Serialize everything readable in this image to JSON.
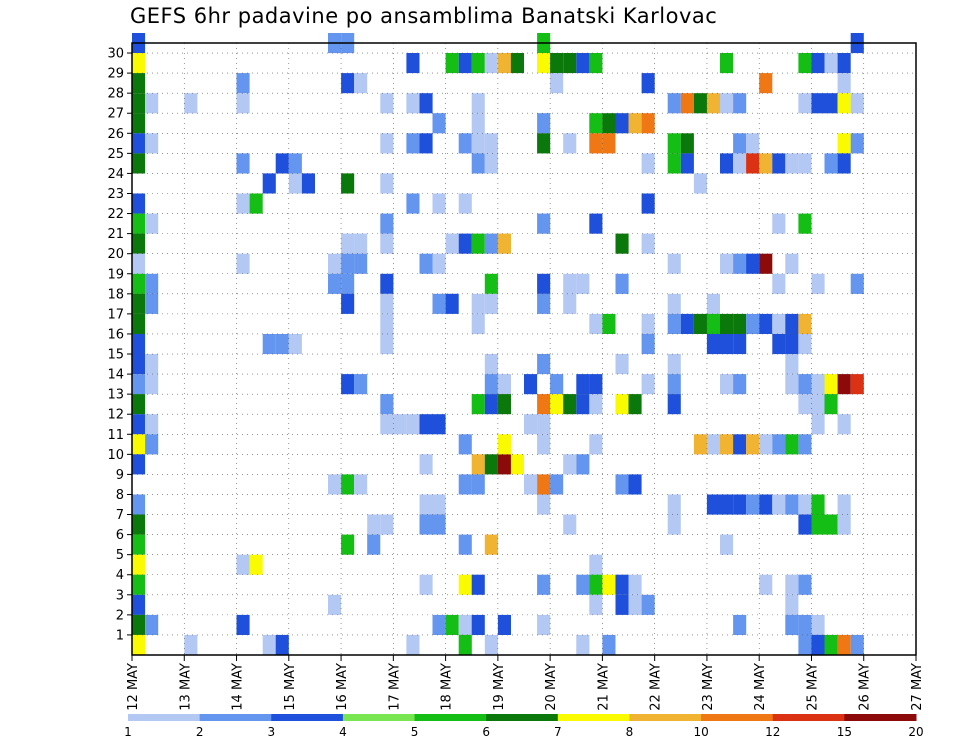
{
  "chart_data": {
    "type": "heatmap",
    "title": "GEFS 6hr padavine po ansamblima Banatski Karlovac",
    "xlabel": "",
    "ylabel": "",
    "x_ticks": [
      "12 MAY",
      "13 MAY",
      "14 MAY",
      "15 MAY",
      "16 MAY",
      "17 MAY",
      "18 MAY",
      "19 MAY",
      "20 MAY",
      "21 MAY",
      "22 MAY",
      "23 MAY",
      "24 MAY",
      "25 MAY",
      "26 MAY",
      "27 MAY"
    ],
    "x_range_days": [
      12,
      27
    ],
    "y_ticks": [
      1,
      2,
      3,
      4,
      5,
      6,
      7,
      8,
      9,
      10,
      11,
      12,
      13,
      14,
      15,
      16,
      17,
      18,
      19,
      20,
      21,
      22,
      23,
      24,
      25,
      26,
      27,
      28,
      29,
      30
    ],
    "ylim": [
      0,
      30
    ],
    "grid": true,
    "colorbar": {
      "labels": [
        "1",
        "2",
        "3",
        "4",
        "5",
        "6",
        "7",
        "8",
        "10",
        "12",
        "15",
        "20"
      ],
      "colors": [
        "#b4c8f4",
        "#6496f0",
        "#1e50dc",
        "#78e650",
        "#14be14",
        "#0a780a",
        "#fafa00",
        "#f0b432",
        "#f07814",
        "#dc3214",
        "#8c0a0a"
      ]
    },
    "cells_note": "each cell: [member, time_slot (0.25 day steps from 12 May 00 UTC), precipitation mm]",
    "cells": [
      [
        30,
        1,
        3
      ],
      [
        29,
        1,
        7
      ],
      [
        28,
        1,
        6
      ],
      [
        27,
        1,
        6
      ],
      [
        26,
        1,
        6
      ],
      [
        25,
        1,
        3
      ],
      [
        24,
        1,
        6
      ],
      [
        22,
        1,
        3
      ],
      [
        21,
        1,
        5
      ],
      [
        20,
        1,
        6
      ],
      [
        19,
        1,
        1
      ],
      [
        18,
        1,
        5
      ],
      [
        17,
        1,
        6
      ],
      [
        16,
        1,
        6
      ],
      [
        15,
        1,
        3
      ],
      [
        14,
        1,
        3
      ],
      [
        13,
        1,
        2
      ],
      [
        12,
        1,
        6
      ],
      [
        11,
        1,
        3
      ],
      [
        10,
        1,
        7
      ],
      [
        9,
        1,
        3
      ],
      [
        7,
        1,
        2
      ],
      [
        6,
        1,
        6
      ],
      [
        5,
        1,
        5
      ],
      [
        4,
        1,
        7
      ],
      [
        3,
        1,
        5
      ],
      [
        2,
        1,
        3
      ],
      [
        1,
        1,
        6
      ],
      [
        0,
        1,
        7
      ],
      [
        27,
        2,
        1
      ],
      [
        25,
        2,
        1
      ],
      [
        21,
        2,
        1
      ],
      [
        18,
        2,
        2
      ],
      [
        17,
        2,
        2
      ],
      [
        14,
        2,
        1
      ],
      [
        13,
        2,
        1
      ],
      [
        11,
        2,
        1
      ],
      [
        10,
        2,
        2
      ],
      [
        1,
        2,
        2
      ],
      [
        27,
        5,
        1
      ],
      [
        0,
        5,
        1
      ],
      [
        28,
        9,
        2
      ],
      [
        27,
        9,
        1
      ],
      [
        24,
        9,
        2
      ],
      [
        22,
        9,
        1
      ],
      [
        19,
        9,
        1
      ],
      [
        4,
        9,
        1
      ],
      [
        1,
        9,
        3
      ],
      [
        22,
        10,
        5
      ],
      [
        4,
        10,
        7
      ],
      [
        23,
        11,
        3
      ],
      [
        15,
        11,
        2
      ],
      [
        0,
        11,
        1
      ],
      [
        24,
        12,
        3
      ],
      [
        15,
        12,
        2
      ],
      [
        0,
        12,
        3
      ],
      [
        24,
        13,
        2
      ],
      [
        23,
        13,
        1
      ],
      [
        15,
        13,
        1
      ],
      [
        23,
        14,
        3
      ],
      [
        30,
        16,
        2
      ],
      [
        19,
        16,
        1
      ],
      [
        18,
        16,
        2
      ],
      [
        2,
        16,
        1
      ],
      [
        8,
        16,
        1
      ],
      [
        30,
        17,
        2
      ],
      [
        28,
        17,
        3
      ],
      [
        23,
        17,
        6
      ],
      [
        20,
        17,
        1
      ],
      [
        19,
        17,
        2
      ],
      [
        18,
        17,
        2
      ],
      [
        17,
        17,
        3
      ],
      [
        13,
        17,
        3
      ],
      [
        8,
        17,
        5
      ],
      [
        5,
        17,
        5
      ],
      [
        28,
        18,
        1
      ],
      [
        20,
        18,
        1
      ],
      [
        19,
        18,
        2
      ],
      [
        13,
        18,
        2
      ],
      [
        8,
        18,
        1
      ],
      [
        6,
        19,
        1
      ],
      [
        5,
        19,
        2
      ],
      [
        27,
        20,
        1
      ],
      [
        25,
        20,
        1
      ],
      [
        23,
        20,
        1
      ],
      [
        21,
        20,
        2
      ],
      [
        20,
        20,
        1
      ],
      [
        18,
        20,
        3
      ],
      [
        17,
        20,
        1
      ],
      [
        16,
        20,
        1
      ],
      [
        15,
        20,
        1
      ],
      [
        12,
        20,
        2
      ],
      [
        11,
        20,
        1
      ],
      [
        6,
        20,
        1
      ],
      [
        11,
        21,
        1
      ],
      [
        11,
        22,
        1
      ],
      [
        27,
        22,
        1
      ],
      [
        25,
        22,
        2
      ],
      [
        22,
        22,
        2
      ],
      [
        11,
        23,
        3
      ],
      [
        0,
        22,
        1
      ],
      [
        29,
        22,
        3
      ],
      [
        27,
        23,
        3
      ],
      [
        25,
        23,
        3
      ],
      [
        19,
        23,
        2
      ],
      [
        11,
        24,
        3
      ],
      [
        9,
        23,
        1
      ],
      [
        7,
        23,
        1
      ],
      [
        6,
        23,
        2
      ],
      [
        3,
        23,
        1
      ],
      [
        26,
        24,
        2
      ],
      [
        22,
        24,
        1
      ],
      [
        19,
        24,
        1
      ],
      [
        17,
        24,
        2
      ],
      [
        7,
        24,
        1
      ],
      [
        6,
        24,
        2
      ],
      [
        1,
        24,
        2
      ],
      [
        29,
        25,
        5
      ],
      [
        20,
        25,
        1
      ],
      [
        17,
        25,
        3
      ],
      [
        1,
        25,
        5
      ],
      [
        29,
        26,
        3
      ],
      [
        22,
        26,
        1
      ],
      [
        25,
        26,
        2
      ],
      [
        20,
        26,
        3
      ],
      [
        10,
        26,
        2
      ],
      [
        8,
        26,
        2
      ],
      [
        5,
        26,
        2
      ],
      [
        3,
        26,
        7
      ],
      [
        1,
        26,
        1
      ],
      [
        0,
        26,
        5
      ],
      [
        29,
        27,
        5
      ],
      [
        27,
        27,
        1
      ],
      [
        26,
        27,
        1
      ],
      [
        25,
        27,
        1
      ],
      [
        24,
        27,
        2
      ],
      [
        20,
        27,
        5
      ],
      [
        17,
        27,
        1
      ],
      [
        16,
        27,
        1
      ],
      [
        12,
        27,
        5
      ],
      [
        9,
        27,
        9
      ],
      [
        8,
        27,
        2
      ],
      [
        3,
        27,
        3
      ],
      [
        1,
        27,
        3
      ],
      [
        29,
        28,
        1
      ],
      [
        25,
        28,
        1
      ],
      [
        24,
        28,
        1
      ],
      [
        20,
        28,
        2
      ],
      [
        18,
        28,
        5
      ],
      [
        17,
        28,
        1
      ],
      [
        14,
        28,
        1
      ],
      [
        13,
        28,
        2
      ],
      [
        12,
        28,
        3
      ],
      [
        9,
        28,
        6
      ],
      [
        5,
        28,
        8
      ],
      [
        0,
        28,
        1
      ],
      [
        29,
        29,
        9
      ],
      [
        20,
        29,
        8
      ],
      [
        13,
        29,
        1
      ],
      [
        12,
        29,
        6
      ],
      [
        9,
        29,
        15
      ],
      [
        10,
        29,
        7
      ],
      [
        1,
        29,
        3
      ],
      [
        29,
        30,
        6
      ],
      [
        9,
        30,
        7
      ],
      [
        13,
        31,
        3
      ],
      [
        11,
        31,
        1
      ],
      [
        8,
        31,
        1
      ],
      [
        30,
        32,
        5
      ],
      [
        29,
        32,
        7
      ],
      [
        26,
        32,
        2
      ],
      [
        25,
        32,
        6
      ],
      [
        21,
        32,
        2
      ],
      [
        18,
        32,
        3
      ],
      [
        17,
        32,
        2
      ],
      [
        14,
        32,
        2
      ],
      [
        12,
        32,
        10
      ],
      [
        11,
        32,
        1
      ],
      [
        10,
        32,
        1
      ],
      [
        8,
        32,
        10
      ],
      [
        7,
        32,
        1
      ],
      [
        3,
        32,
        2
      ],
      [
        1,
        32,
        1
      ],
      [
        29,
        33,
        6
      ],
      [
        28,
        33,
        1
      ],
      [
        13,
        33,
        2
      ],
      [
        12,
        33,
        7
      ],
      [
        8,
        33,
        2
      ],
      [
        29,
        34,
        6
      ],
      [
        25,
        34,
        1
      ],
      [
        18,
        34,
        1
      ],
      [
        17,
        34,
        1
      ],
      [
        12,
        34,
        6
      ],
      [
        9,
        34,
        1
      ],
      [
        6,
        34,
        1
      ],
      [
        29,
        35,
        3
      ],
      [
        18,
        35,
        1
      ],
      [
        13,
        35,
        3
      ],
      [
        12,
        35,
        3
      ],
      [
        9,
        35,
        2
      ],
      [
        3,
        35,
        2
      ],
      [
        0,
        35,
        1
      ],
      [
        29,
        36,
        5
      ],
      [
        26,
        36,
        5
      ],
      [
        25,
        36,
        10
      ],
      [
        21,
        36,
        3
      ],
      [
        16,
        36,
        1
      ],
      [
        13,
        36,
        3
      ],
      [
        12,
        36,
        1
      ],
      [
        10,
        36,
        1
      ],
      [
        4,
        36,
        1
      ],
      [
        3,
        36,
        5
      ],
      [
        2,
        36,
        1
      ],
      [
        26,
        37,
        6
      ],
      [
        25,
        37,
        10
      ],
      [
        16,
        37,
        5
      ],
      [
        3,
        37,
        7
      ],
      [
        0,
        37,
        2
      ],
      [
        26,
        38,
        3
      ],
      [
        20,
        38,
        6
      ],
      [
        18,
        38,
        2
      ],
      [
        14,
        38,
        1
      ],
      [
        12,
        38,
        7
      ],
      [
        8,
        38,
        2
      ],
      [
        3,
        38,
        3
      ],
      [
        2,
        38,
        3
      ],
      [
        26,
        39,
        8
      ],
      [
        12,
        39,
        6
      ],
      [
        8,
        39,
        3
      ],
      [
        3,
        39,
        1
      ],
      [
        2,
        39,
        1
      ],
      [
        26,
        40,
        10
      ],
      [
        24,
        40,
        1
      ],
      [
        22,
        40,
        3
      ],
      [
        20,
        40,
        1
      ],
      [
        16,
        40,
        1
      ],
      [
        15,
        40,
        2
      ],
      [
        13,
        40,
        1
      ],
      [
        2,
        40,
        2
      ],
      [
        28,
        40,
        3
      ],
      [
        27,
        42,
        2
      ],
      [
        25,
        42,
        5
      ],
      [
        24,
        42,
        5
      ],
      [
        19,
        42,
        1
      ],
      [
        17,
        42,
        1
      ],
      [
        16,
        42,
        2
      ],
      [
        14,
        42,
        1
      ],
      [
        13,
        42,
        2
      ],
      [
        12,
        42,
        3
      ],
      [
        6,
        42,
        1
      ],
      [
        7,
        42,
        1
      ],
      [
        27,
        43,
        10
      ],
      [
        25,
        43,
        6
      ],
      [
        24,
        43,
        3
      ],
      [
        16,
        43,
        3
      ],
      [
        27,
        44,
        6
      ],
      [
        16,
        44,
        6
      ],
      [
        10,
        44,
        8
      ],
      [
        27,
        45,
        8
      ],
      [
        23,
        44,
        1
      ],
      [
        17,
        45,
        1
      ],
      [
        16,
        45,
        5
      ],
      [
        15,
        45,
        3
      ],
      [
        10,
        45,
        1
      ],
      [
        7,
        45,
        3
      ],
      [
        29,
        46,
        5
      ],
      [
        27,
        46,
        1
      ],
      [
        24,
        46,
        3
      ],
      [
        19,
        46,
        1
      ],
      [
        16,
        46,
        6
      ],
      [
        15,
        46,
        3
      ],
      [
        13,
        46,
        1
      ],
      [
        10,
        46,
        8
      ],
      [
        7,
        46,
        3
      ],
      [
        5,
        46,
        1
      ],
      [
        27,
        47,
        2
      ],
      [
        25,
        47,
        2
      ],
      [
        24,
        47,
        1
      ],
      [
        19,
        47,
        2
      ],
      [
        16,
        47,
        6
      ],
      [
        15,
        47,
        3
      ],
      [
        13,
        47,
        2
      ],
      [
        10,
        47,
        3
      ],
      [
        7,
        47,
        3
      ],
      [
        1,
        47,
        2
      ],
      [
        25,
        48,
        1
      ],
      [
        24,
        48,
        12
      ],
      [
        19,
        48,
        3
      ],
      [
        16,
        48,
        2
      ],
      [
        10,
        48,
        8
      ],
      [
        7,
        48,
        2
      ],
      [
        28,
        49,
        10
      ],
      [
        24,
        49,
        8
      ],
      [
        19,
        49,
        15
      ],
      [
        16,
        49,
        3
      ],
      [
        10,
        49,
        1
      ],
      [
        7,
        49,
        3
      ],
      [
        3,
        49,
        1
      ],
      [
        24,
        50,
        3
      ],
      [
        21,
        50,
        1
      ],
      [
        16,
        50,
        1
      ],
      [
        18,
        50,
        1
      ],
      [
        15,
        50,
        3
      ],
      [
        10,
        50,
        2
      ],
      [
        7,
        50,
        1
      ],
      [
        24,
        51,
        1
      ],
      [
        19,
        51,
        1
      ],
      [
        16,
        51,
        3
      ],
      [
        15,
        51,
        3
      ],
      [
        14,
        51,
        1
      ],
      [
        13,
        51,
        1
      ],
      [
        10,
        51,
        5
      ],
      [
        7,
        51,
        2
      ],
      [
        3,
        51,
        1
      ],
      [
        2,
        51,
        1
      ],
      [
        1,
        51,
        2
      ],
      [
        29,
        52,
        5
      ],
      [
        27,
        52,
        1
      ],
      [
        24,
        52,
        1
      ],
      [
        21,
        52,
        5
      ],
      [
        16,
        52,
        8
      ],
      [
        15,
        52,
        1
      ],
      [
        13,
        52,
        2
      ],
      [
        12,
        52,
        1
      ],
      [
        10,
        52,
        2
      ],
      [
        7,
        52,
        1
      ],
      [
        6,
        52,
        3
      ],
      [
        3,
        52,
        2
      ],
      [
        1,
        52,
        2
      ],
      [
        0,
        52,
        2
      ],
      [
        29,
        53,
        3
      ],
      [
        27,
        53,
        3
      ],
      [
        18,
        53,
        1
      ],
      [
        13,
        53,
        1
      ],
      [
        12,
        53,
        1
      ],
      [
        11,
        53,
        1
      ],
      [
        7,
        53,
        5
      ],
      [
        6,
        53,
        5
      ],
      [
        1,
        53,
        1
      ],
      [
        0,
        53,
        3
      ],
      [
        29,
        54,
        1
      ],
      [
        27,
        54,
        3
      ],
      [
        24,
        54,
        2
      ],
      [
        13,
        54,
        7
      ],
      [
        12,
        54,
        5
      ],
      [
        6,
        54,
        5
      ],
      [
        0,
        54,
        5
      ],
      [
        29,
        55,
        3
      ],
      [
        28,
        55,
        1
      ],
      [
        27,
        55,
        7
      ],
      [
        25,
        55,
        7
      ],
      [
        24,
        55,
        3
      ],
      [
        13,
        55,
        20
      ],
      [
        11,
        55,
        1
      ],
      [
        7,
        55,
        1
      ],
      [
        6,
        55,
        1
      ],
      [
        0,
        55,
        10
      ],
      [
        30,
        56,
        3
      ],
      [
        27,
        56,
        1
      ],
      [
        25,
        56,
        2
      ],
      [
        18,
        56,
        2
      ],
      [
        13,
        56,
        12
      ],
      [
        0,
        56,
        2
      ]
    ]
  }
}
